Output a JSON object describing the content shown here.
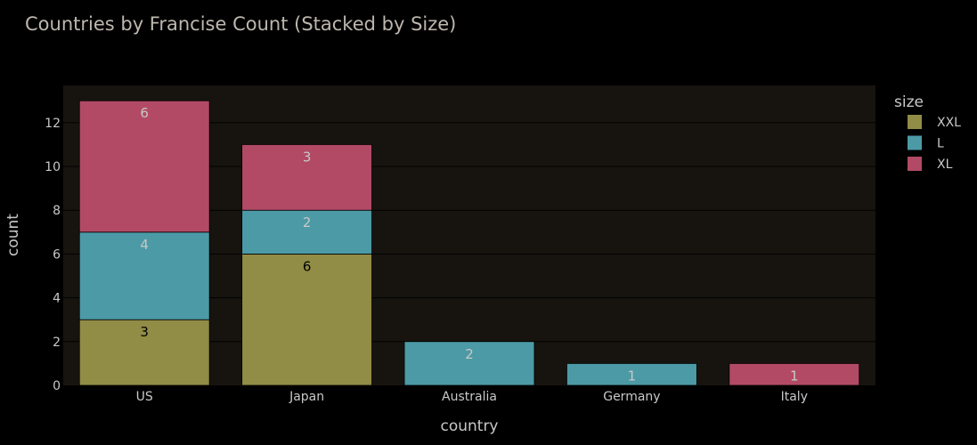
{
  "chart_data": {
    "type": "bar",
    "stacked": true,
    "title": "Countries by Francise Count (Stacked by Size)",
    "xlabel": "country",
    "ylabel": "count",
    "ylim": [
      0,
      13.7
    ],
    "yticks": [
      0,
      2,
      4,
      6,
      8,
      10,
      12
    ],
    "grid": true,
    "categories": [
      "US",
      "Japan",
      "Australia",
      "Germany",
      "Italy"
    ],
    "series": [
      {
        "name": "XXL",
        "color": "#918c46",
        "values": [
          3,
          6,
          0,
          0,
          0
        ],
        "labels": [
          "3",
          "6",
          "",
          "",
          ""
        ],
        "label_color": "#000000"
      },
      {
        "name": "L",
        "color": "#4c9aa6",
        "values": [
          4,
          2,
          2,
          1,
          0
        ],
        "labels": [
          "4",
          "2",
          "2",
          "1",
          ""
        ],
        "label_color": "#c8c8c8"
      },
      {
        "name": "XL",
        "color": "#b24a65",
        "values": [
          6,
          3,
          0,
          0,
          1
        ],
        "labels": [
          "6",
          "3",
          "",
          "",
          "1"
        ],
        "label_color": "#c8c8c8"
      }
    ],
    "legend": {
      "title": "size",
      "position": "right"
    },
    "colors": {
      "background": "#000000",
      "plot_background": "#17140f",
      "grid": "#000000",
      "text": "#c8c8c8",
      "title": "#bdb7ae"
    }
  }
}
